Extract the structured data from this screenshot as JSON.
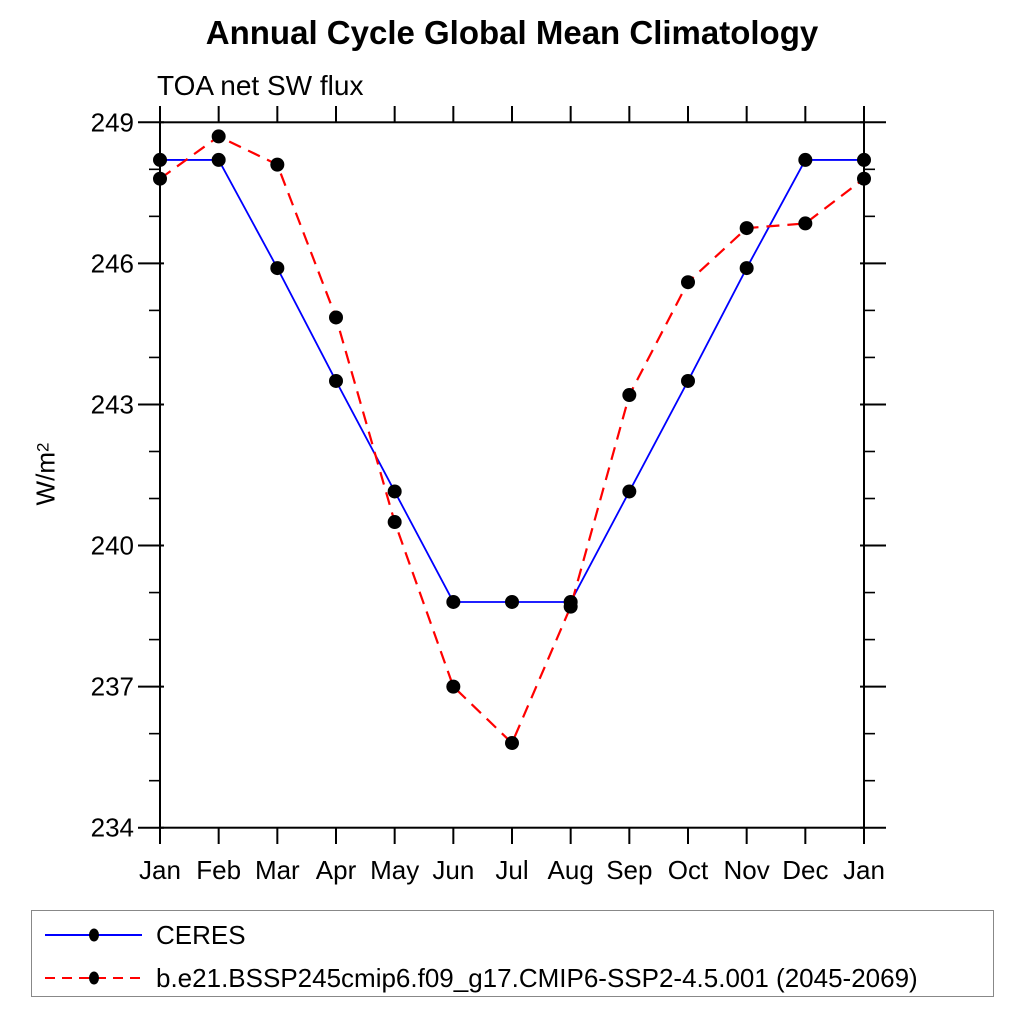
{
  "title": "Annual Cycle Global Mean Climatology",
  "subtitle": "TOA net SW flux",
  "y_axis": {
    "label_base": "W/m",
    "label_exponent": "2"
  },
  "chart_data": {
    "type": "line",
    "title": "Annual Cycle Global Mean Climatology",
    "subtitle": "TOA net SW flux",
    "ylabel": "W/m^2",
    "xlabel": "",
    "x_categories": [
      "Jan",
      "Feb",
      "Mar",
      "Apr",
      "May",
      "Jun",
      "Jul",
      "Aug",
      "Sep",
      "Oct",
      "Nov",
      "Dec",
      "Jan"
    ],
    "ylim": [
      234,
      249
    ],
    "ytick_major": [
      234,
      237,
      240,
      243,
      246,
      249
    ],
    "ytick_minor_step": 1,
    "grid": false,
    "legend_position": "bottom-left-box",
    "series": [
      {
        "name": "CERES",
        "line_color": "#0000ff",
        "line_style": "solid",
        "marker": "filled-circle",
        "marker_color": "#000000",
        "values": [
          248.2,
          248.2,
          245.9,
          243.5,
          241.15,
          238.8,
          238.8,
          238.8,
          241.15,
          243.5,
          245.9,
          248.2,
          248.2
        ]
      },
      {
        "name": "b.e21.BSSP245cmip6.f09_g17.CMIP6-SSP2-4.5.001 (2045-2069)",
        "line_color": "#ff0000",
        "line_style": "dashed",
        "marker": "filled-circle",
        "marker_color": "#000000",
        "values": [
          247.8,
          248.7,
          248.1,
          244.85,
          240.5,
          237.0,
          235.8,
          238.7,
          243.2,
          245.6,
          246.75,
          246.85,
          247.8
        ]
      }
    ]
  },
  "style": {
    "axis_color": "#000000",
    "tick_label_color": "#000000",
    "legend_border_color": "#888888"
  }
}
